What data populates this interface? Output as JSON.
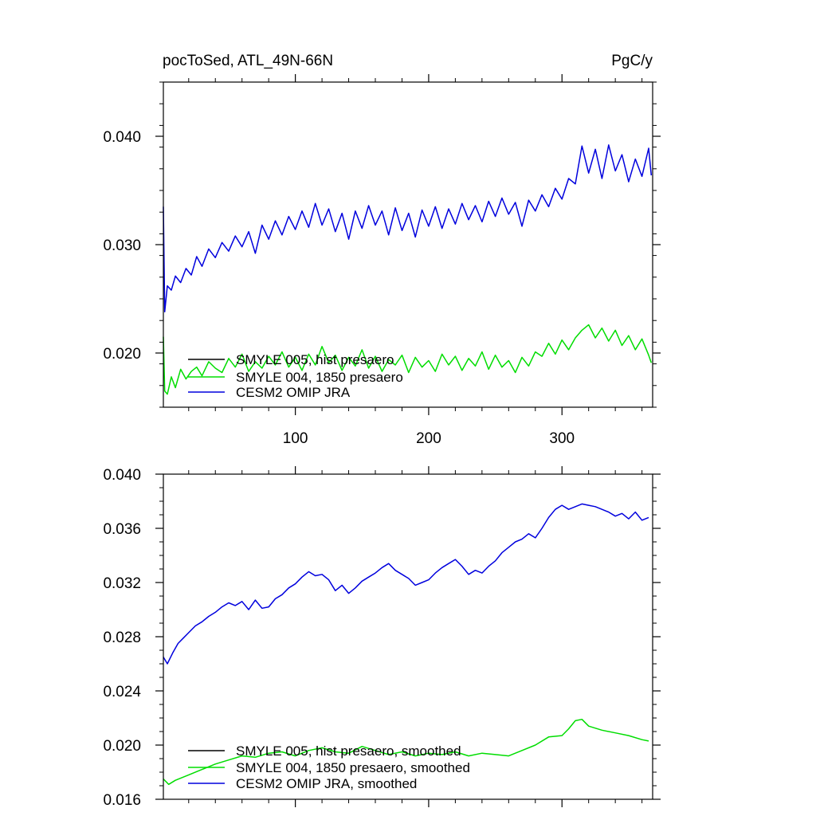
{
  "header": {
    "left_title": "pocToSed, ATL_49N-66N",
    "right_title": "PgC/y"
  },
  "colors": {
    "SMYLE 005": "#000000",
    "SMYLE 004": "#00dd00",
    "CESM2 OMIP JRA": "#0000dd",
    "axis": "#000000"
  },
  "chart_data": [
    {
      "type": "line",
      "title": "pocToSed, ATL_49N-66N",
      "units": "PgC/y",
      "x_ticks": [
        100,
        200,
        300
      ],
      "x_tick_labels": [
        "100",
        "200",
        "300"
      ],
      "xlim": [
        1,
        368
      ],
      "y_ticks": [
        0.02,
        0.03,
        0.04
      ],
      "y_tick_labels": [
        "0.020",
        "0.030",
        "0.040"
      ],
      "ylim": [
        0.015,
        0.045
      ],
      "legend_position": "bottom-left",
      "legend": [
        "SMYLE 005, hist presaero",
        "SMYLE 004, 1850 presaero",
        "CESM2 OMIP JRA"
      ],
      "series": [
        {
          "name": "SMYLE 004, 1850 presaero",
          "color": "#00dd00",
          "x": [
            1,
            2,
            4,
            7,
            10,
            14,
            18,
            22,
            26,
            30,
            35,
            40,
            45,
            50,
            55,
            60,
            65,
            70,
            75,
            80,
            85,
            90,
            95,
            100,
            105,
            110,
            115,
            120,
            125,
            130,
            135,
            140,
            145,
            150,
            155,
            160,
            165,
            170,
            175,
            180,
            185,
            190,
            195,
            200,
            205,
            210,
            215,
            220,
            225,
            230,
            235,
            240,
            245,
            250,
            255,
            260,
            265,
            270,
            275,
            280,
            285,
            290,
            295,
            300,
            305,
            310,
            315,
            320,
            325,
            330,
            335,
            340,
            345,
            350,
            355,
            360,
            365,
            367
          ],
          "y": [
            0.0215,
            0.0165,
            0.0162,
            0.0178,
            0.0168,
            0.0185,
            0.0176,
            0.0183,
            0.0187,
            0.0179,
            0.0192,
            0.0186,
            0.0182,
            0.0195,
            0.0187,
            0.0199,
            0.0183,
            0.0192,
            0.0186,
            0.0197,
            0.0189,
            0.0201,
            0.0187,
            0.0196,
            0.0184,
            0.0199,
            0.0189,
            0.0206,
            0.0191,
            0.0198,
            0.0184,
            0.0196,
            0.0188,
            0.0203,
            0.0186,
            0.0197,
            0.0183,
            0.0194,
            0.0189,
            0.0198,
            0.0182,
            0.0196,
            0.0187,
            0.0193,
            0.0183,
            0.0199,
            0.0189,
            0.0197,
            0.0184,
            0.0195,
            0.0188,
            0.0201,
            0.0185,
            0.0198,
            0.0187,
            0.0193,
            0.0182,
            0.0196,
            0.0188,
            0.0201,
            0.0197,
            0.0209,
            0.0199,
            0.0212,
            0.0203,
            0.0214,
            0.0221,
            0.0226,
            0.0214,
            0.0223,
            0.0211,
            0.0221,
            0.0207,
            0.0216,
            0.0203,
            0.0213,
            0.0198,
            0.0191
          ]
        },
        {
          "name": "CESM2 OMIP JRA",
          "color": "#0000dd",
          "x": [
            1,
            2,
            4,
            7,
            10,
            14,
            18,
            22,
            26,
            30,
            35,
            40,
            45,
            50,
            55,
            60,
            65,
            70,
            75,
            80,
            85,
            90,
            95,
            100,
            105,
            110,
            115,
            120,
            125,
            130,
            135,
            140,
            145,
            150,
            155,
            160,
            165,
            170,
            175,
            180,
            185,
            190,
            195,
            200,
            205,
            210,
            215,
            220,
            225,
            230,
            235,
            240,
            245,
            250,
            255,
            260,
            265,
            270,
            275,
            280,
            285,
            290,
            295,
            300,
            305,
            310,
            315,
            320,
            325,
            330,
            335,
            340,
            345,
            350,
            355,
            360,
            365,
            367
          ],
          "y": [
            0.0335,
            0.0238,
            0.0262,
            0.0258,
            0.0271,
            0.0265,
            0.0278,
            0.0272,
            0.0289,
            0.028,
            0.0296,
            0.0288,
            0.0302,
            0.0294,
            0.0308,
            0.0298,
            0.0312,
            0.0292,
            0.0318,
            0.0305,
            0.0322,
            0.0309,
            0.0326,
            0.0314,
            0.0331,
            0.0316,
            0.0338,
            0.0318,
            0.0333,
            0.0312,
            0.0329,
            0.0305,
            0.0331,
            0.0315,
            0.0336,
            0.0318,
            0.0331,
            0.0309,
            0.0334,
            0.0313,
            0.0329,
            0.0307,
            0.0332,
            0.0317,
            0.0335,
            0.0315,
            0.0333,
            0.0319,
            0.0338,
            0.0323,
            0.0336,
            0.0321,
            0.034,
            0.0326,
            0.0343,
            0.0328,
            0.0339,
            0.0317,
            0.0341,
            0.0331,
            0.0346,
            0.0335,
            0.0352,
            0.0342,
            0.0361,
            0.0356,
            0.0391,
            0.0366,
            0.0388,
            0.0361,
            0.0392,
            0.0368,
            0.0383,
            0.0358,
            0.0379,
            0.0363,
            0.0389,
            0.0364
          ]
        }
      ]
    },
    {
      "type": "line",
      "x_ticks": [
        100,
        200,
        300
      ],
      "x_tick_labels": [],
      "xlim": [
        1,
        368
      ],
      "y_ticks": [
        0.016,
        0.02,
        0.024,
        0.028,
        0.032,
        0.036,
        0.04
      ],
      "y_tick_labels": [
        "0.016",
        "0.020",
        "0.024",
        "0.028",
        "0.032",
        "0.036",
        "0.040"
      ],
      "ylim": [
        0.016,
        0.04
      ],
      "legend_position": "bottom-left",
      "legend": [
        "SMYLE 005, hist presaero, smoothed",
        "SMYLE 004, 1850 presaero, smoothed",
        "CESM2 OMIP JRA, smoothed"
      ],
      "series": [
        {
          "name": "SMYLE 004, 1850 presaero, smoothed",
          "color": "#00dd00",
          "x": [
            1,
            5,
            10,
            20,
            30,
            40,
            50,
            60,
            70,
            80,
            90,
            100,
            110,
            120,
            130,
            140,
            150,
            160,
            170,
            180,
            190,
            200,
            210,
            220,
            230,
            240,
            250,
            260,
            270,
            280,
            290,
            300,
            305,
            310,
            315,
            320,
            330,
            340,
            350,
            360,
            365
          ],
          "y": [
            0.0175,
            0.0171,
            0.0174,
            0.0178,
            0.0182,
            0.0186,
            0.0189,
            0.0192,
            0.0191,
            0.0194,
            0.0195,
            0.0192,
            0.0196,
            0.0198,
            0.0195,
            0.0194,
            0.0199,
            0.0196,
            0.0193,
            0.0195,
            0.0192,
            0.0194,
            0.0193,
            0.0195,
            0.0192,
            0.0194,
            0.0193,
            0.0192,
            0.0196,
            0.02,
            0.0206,
            0.0207,
            0.0212,
            0.0218,
            0.0219,
            0.0214,
            0.0211,
            0.0209,
            0.0207,
            0.0204,
            0.0203
          ]
        },
        {
          "name": "CESM2 OMIP JRA, smoothed",
          "color": "#0000dd",
          "x": [
            1,
            4,
            8,
            12,
            16,
            20,
            25,
            30,
            35,
            40,
            45,
            50,
            55,
            60,
            65,
            70,
            75,
            80,
            85,
            90,
            95,
            100,
            105,
            110,
            115,
            120,
            125,
            130,
            135,
            140,
            145,
            150,
            155,
            160,
            165,
            170,
            175,
            180,
            185,
            190,
            195,
            200,
            205,
            210,
            215,
            220,
            225,
            230,
            235,
            240,
            245,
            250,
            255,
            260,
            265,
            270,
            275,
            280,
            285,
            290,
            295,
            300,
            305,
            310,
            315,
            320,
            325,
            330,
            335,
            340,
            345,
            350,
            355,
            360,
            365
          ],
          "y": [
            0.0265,
            0.026,
            0.0268,
            0.0275,
            0.0279,
            0.0283,
            0.0288,
            0.0291,
            0.0295,
            0.0298,
            0.0302,
            0.0305,
            0.0303,
            0.0306,
            0.03,
            0.0307,
            0.0301,
            0.0302,
            0.0308,
            0.0311,
            0.0316,
            0.0319,
            0.0324,
            0.0328,
            0.0325,
            0.0326,
            0.0322,
            0.0314,
            0.0318,
            0.0312,
            0.0316,
            0.0321,
            0.0324,
            0.0327,
            0.0331,
            0.0334,
            0.0329,
            0.0326,
            0.0323,
            0.0318,
            0.032,
            0.0322,
            0.0327,
            0.0331,
            0.0334,
            0.0337,
            0.0332,
            0.0326,
            0.0329,
            0.0327,
            0.0332,
            0.0336,
            0.0342,
            0.0346,
            0.035,
            0.0352,
            0.0356,
            0.0353,
            0.036,
            0.0368,
            0.0374,
            0.0377,
            0.0374,
            0.0376,
            0.0378,
            0.0377,
            0.0376,
            0.0374,
            0.0372,
            0.0369,
            0.0371,
            0.0367,
            0.0372,
            0.0366,
            0.0368
          ]
        }
      ]
    }
  ]
}
